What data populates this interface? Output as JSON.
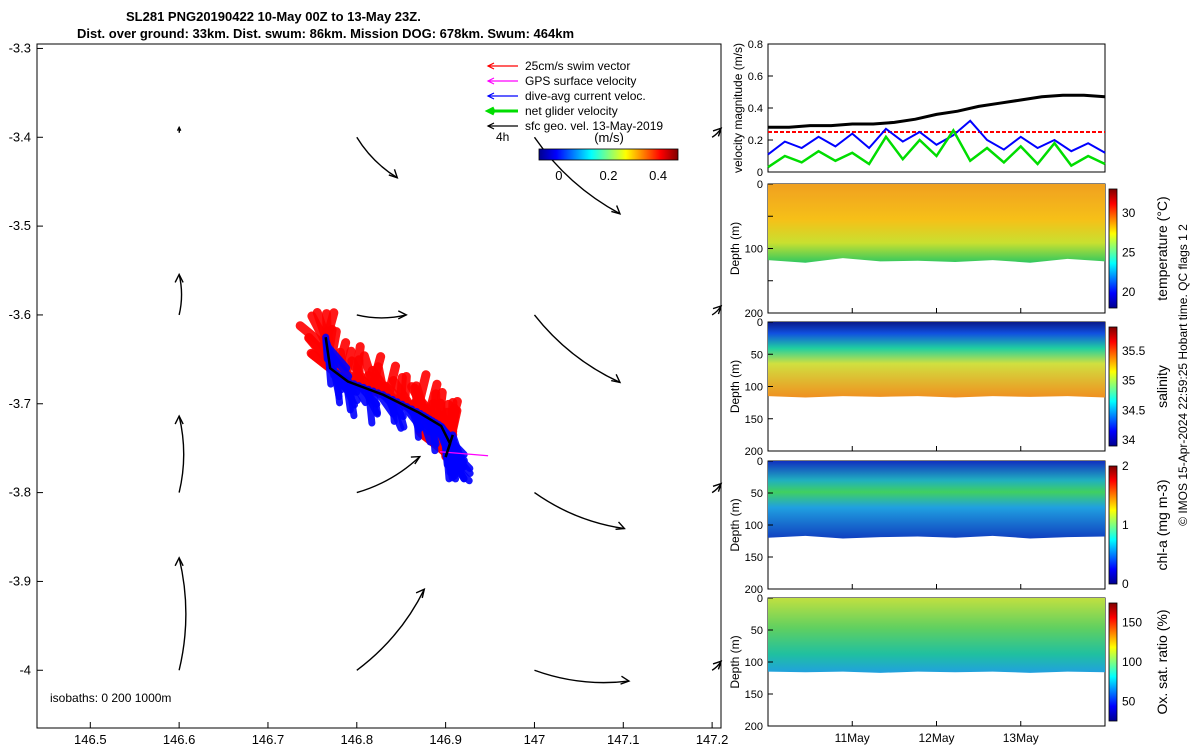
{
  "title": {
    "line1": "SL281 PNG20190422 10-May 00Z to 13-May 23Z.",
    "line2": "Dist. over ground: 33km. Dist. swum: 86km. Mission DOG: 678km. Swum: 464km"
  },
  "credit": "© IMOS 15-Apr-2024 22:59:25 Hobart time. QC flags 1  2",
  "chart_data": [
    {
      "type": "scatter",
      "name": "glider track map",
      "xlim": [
        146.44,
        147.21
      ],
      "ylim": [
        -4.065,
        -3.295
      ],
      "xticks": [
        146.5,
        146.6,
        146.7,
        146.8,
        146.9,
        147,
        147.1,
        147.2
      ],
      "xtick_labels": [
        "146.5",
        "146.6",
        "146.7",
        "146.8",
        "146.9",
        "147",
        "147.1",
        "147.2"
      ],
      "yticks": [
        -3.3,
        -3.4,
        -3.5,
        -3.6,
        -3.7,
        -3.8,
        -3.9,
        -4
      ],
      "ytick_labels": [
        "-3.3",
        "-3.4",
        "-3.5",
        "-3.6",
        "-3.7",
        "-3.8",
        "-3.9",
        "-4"
      ],
      "legend": [
        {
          "label": "25cm/s swim vector",
          "color": "#ff0000"
        },
        {
          "label": "GPS surface velocity",
          "color": "#ff00ff"
        },
        {
          "label": "dive-avg current veloc.",
          "color": "#0000ff"
        },
        {
          "label": "net glider velocity",
          "color": "#00dd00"
        },
        {
          "label": "sfc geo. vel. 13-May-2019",
          "color": "#000000"
        }
      ],
      "scale_label": "4h",
      "colorbar": {
        "label": "(m/s)",
        "ticks": [
          0,
          0.2,
          0.4
        ],
        "tick_labels": [
          "0",
          "0.2",
          "0.4"
        ],
        "range": [
          -0.08,
          0.48
        ]
      },
      "isobaths_label": "isobaths: 0   200  1000m",
      "track": [
        [
          146.765,
          -3.625
        ],
        [
          146.77,
          -3.66
        ],
        [
          146.79,
          -3.675
        ],
        [
          146.83,
          -3.69
        ],
        [
          146.87,
          -3.71
        ],
        [
          146.895,
          -3.725
        ],
        [
          146.905,
          -3.745
        ],
        [
          146.9,
          -3.76
        ],
        [
          146.908,
          -3.735
        ]
      ],
      "sfc_vectors": [
        {
          "lon": 146.6,
          "lat": -3.395,
          "u": 0.0,
          "v": 0.006
        },
        {
          "lon": 146.6,
          "lat": -3.6,
          "u": 0.0,
          "v": 0.045
        },
        {
          "lon": 146.6,
          "lat": -3.8,
          "u": 0.0,
          "v": 0.085
        },
        {
          "lon": 146.6,
          "lat": -4.0,
          "u": 0.0,
          "v": 0.125
        },
        {
          "lon": 146.8,
          "lat": -3.4,
          "u": 0.045,
          "v": -0.045
        },
        {
          "lon": 146.8,
          "lat": -3.6,
          "u": 0.055,
          "v": 0.0
        },
        {
          "lon": 146.8,
          "lat": -3.8,
          "u": 0.07,
          "v": 0.04
        },
        {
          "lon": 146.8,
          "lat": -4.0,
          "u": 0.075,
          "v": 0.09
        },
        {
          "lon": 147.0,
          "lat": -3.4,
          "u": 0.095,
          "v": -0.085
        },
        {
          "lon": 147.0,
          "lat": -3.6,
          "u": 0.095,
          "v": -0.075
        },
        {
          "lon": 147.0,
          "lat": -3.8,
          "u": 0.1,
          "v": -0.04
        },
        {
          "lon": 147.0,
          "lat": -4.0,
          "u": 0.105,
          "v": -0.012
        },
        {
          "lon": 147.2,
          "lat": -3.4,
          "u": 0.01,
          "v": 0.01
        },
        {
          "lon": 147.2,
          "lat": -3.6,
          "u": 0.01,
          "v": 0.01
        },
        {
          "lon": 147.2,
          "lat": -3.8,
          "u": 0.01,
          "v": 0.01
        },
        {
          "lon": 147.2,
          "lat": -4.0,
          "u": 0.01,
          "v": 0.01
        }
      ]
    },
    {
      "type": "line",
      "name": "velocity magnitude",
      "ylabel": "velocity magnitude (m/s)",
      "xlim": [
        0,
        4
      ],
      "ylim": [
        0,
        0.8
      ],
      "yticks": [
        0,
        0.2,
        0.4,
        0.6,
        0.8
      ],
      "ytick_labels": [
        "0",
        "0.2",
        "0.4",
        "0.6",
        "0.8"
      ],
      "series": [
        {
          "name": "black",
          "color": "#000000",
          "x": [
            0,
            0.25,
            0.5,
            0.75,
            1,
            1.25,
            1.5,
            1.75,
            2,
            2.25,
            2.5,
            2.75,
            3,
            3.25,
            3.5,
            3.75,
            4
          ],
          "values": [
            0.28,
            0.28,
            0.29,
            0.29,
            0.3,
            0.3,
            0.31,
            0.33,
            0.36,
            0.38,
            0.41,
            0.43,
            0.45,
            0.47,
            0.48,
            0.48,
            0.47
          ]
        },
        {
          "name": "red",
          "color": "#ff0000",
          "x": [
            0,
            4
          ],
          "values": [
            0.25,
            0.25
          ]
        },
        {
          "name": "blue",
          "color": "#0000ff",
          "x": [
            0,
            0.2,
            0.4,
            0.6,
            0.8,
            1,
            1.2,
            1.4,
            1.6,
            1.8,
            2,
            2.2,
            2.4,
            2.6,
            2.8,
            3,
            3.2,
            3.4,
            3.6,
            3.8,
            4
          ],
          "values": [
            0.11,
            0.19,
            0.15,
            0.22,
            0.16,
            0.24,
            0.15,
            0.27,
            0.19,
            0.25,
            0.17,
            0.23,
            0.32,
            0.2,
            0.14,
            0.22,
            0.15,
            0.2,
            0.13,
            0.18,
            0.12
          ]
        },
        {
          "name": "green",
          "color": "#00dd00",
          "x": [
            0,
            0.2,
            0.4,
            0.6,
            0.8,
            1,
            1.2,
            1.4,
            1.6,
            1.8,
            2,
            2.2,
            2.4,
            2.6,
            2.8,
            3,
            3.2,
            3.4,
            3.6,
            3.8,
            4
          ],
          "values": [
            0.03,
            0.1,
            0.06,
            0.13,
            0.07,
            0.12,
            0.05,
            0.22,
            0.08,
            0.2,
            0.1,
            0.26,
            0.07,
            0.15,
            0.06,
            0.16,
            0.05,
            0.18,
            0.04,
            0.1,
            0.05
          ]
        }
      ]
    },
    {
      "type": "heatmap",
      "name": "temperature",
      "ylabel": "Depth (m)",
      "ylim": [
        0,
        200
      ],
      "yticks": [
        0,
        50,
        100,
        150,
        200
      ],
      "ytick_labels": [
        "0",
        "",
        "100",
        "",
        "200"
      ],
      "max_depth": [
        118,
        122,
        115,
        120,
        119,
        121,
        118,
        122,
        116,
        120
      ],
      "colorbar_label": "temperature (°C)",
      "colorbar_ticks": [
        20,
        25,
        30
      ],
      "colorbar_range": [
        18,
        33
      ]
    },
    {
      "type": "heatmap",
      "name": "salinity",
      "ylabel": "Depth (m)",
      "ylim": [
        0,
        200
      ],
      "yticks": [
        0,
        50,
        100,
        150,
        200
      ],
      "ytick_labels": [
        "0",
        "50",
        "100",
        "150",
        "200"
      ],
      "max_depth": [
        115,
        117,
        115,
        116,
        115,
        117,
        115,
        116,
        115,
        117
      ],
      "colorbar_label": "salinity",
      "colorbar_ticks": [
        34,
        34.5,
        35,
        35.5
      ],
      "colorbar_range": [
        33.9,
        35.9
      ]
    },
    {
      "type": "heatmap",
      "name": "chl-a",
      "ylabel": "Depth (m)",
      "ylim": [
        0,
        200
      ],
      "yticks": [
        0,
        50,
        100,
        150,
        200
      ],
      "ytick_labels": [
        "0",
        "50",
        "100",
        "150",
        "200"
      ],
      "max_depth": [
        120,
        117,
        121,
        119,
        118,
        120,
        117,
        121,
        119,
        118
      ],
      "colorbar_label": "chl-a (mg m-3)",
      "colorbar_ticks": [
        0,
        1,
        2
      ],
      "colorbar_range": [
        0,
        2
      ]
    },
    {
      "type": "heatmap",
      "name": "oxygen saturation",
      "ylabel": "Depth (m)",
      "ylim": [
        0,
        200
      ],
      "yticks": [
        0,
        50,
        100,
        150,
        200
      ],
      "ytick_labels": [
        "0",
        "50",
        "100",
        "150",
        "200"
      ],
      "max_depth": [
        115,
        116,
        115,
        117,
        115,
        116,
        115,
        117,
        115,
        116
      ],
      "colorbar_label": "Ox. sat. ratio (%)",
      "colorbar_ticks": [
        50,
        100,
        150
      ],
      "colorbar_range": [
        25,
        175
      ],
      "xticks": [
        1,
        2,
        3
      ],
      "xtick_labels": [
        "11May",
        "12May",
        "13May"
      ],
      "xlim": [
        0,
        4
      ]
    }
  ]
}
